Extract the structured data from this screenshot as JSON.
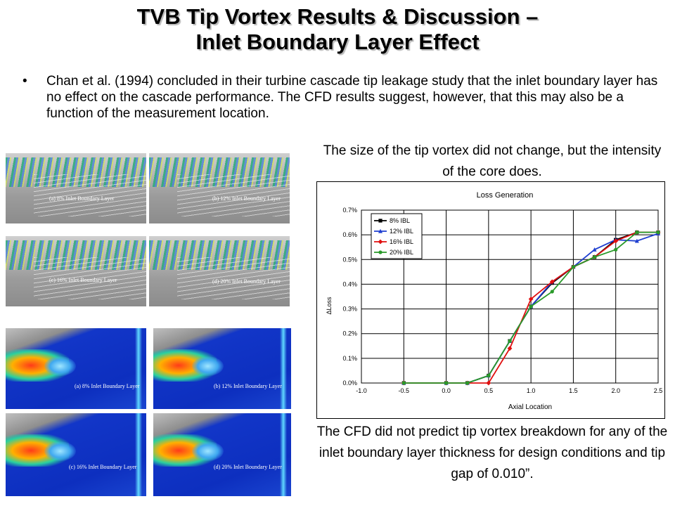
{
  "slide": {
    "title_line1": "TVB Tip Vortex Results & Discussion –",
    "title_line2": "Inlet Boundary Layer Effect",
    "bullet_symbol": "•",
    "bullet": "Chan et al. (1994) concluded in their turbine cascade tip leakage study that the inlet boundary layer has no effect on the cascade performance.  The CFD results suggest, however, that this may also be a function of the measurement location.",
    "caption_top": "The size of the tip vortex did not change, but the intensity of the core does.",
    "caption_bottom": "The CFD did not predict tip vortex breakdown for any of the inlet boundary layer thickness for design conditions and tip gap of 0.010”."
  },
  "figures": {
    "streamline_panels": [
      "(a) 8% Inlet Boundary Layer",
      "(b) 12% Inlet Boundary Layer",
      "(c) 16% Inlet Boundary Layer",
      "(d) 20% Inlet Boundary Layer"
    ],
    "contour_panels": [
      "(a) 8% Inlet Boundary Layer",
      "(b) 12% Inlet Boundary Layer",
      "(c) 16% Inlet Boundary Layer",
      "(d) 20% Inlet Boundary Layer"
    ]
  },
  "chart_data": {
    "type": "line",
    "title": "Loss Generation",
    "xlabel": "Axial Location",
    "ylabel": "ΔLoss",
    "xlim": [
      -1.0,
      2.5
    ],
    "ylim": [
      0.0,
      0.007
    ],
    "x_ticks": [
      "-1.0",
      "-0.5",
      "0.0",
      "0.5",
      "1.0",
      "1.5",
      "2.0",
      "2.5"
    ],
    "y_ticks": [
      "0.0%",
      "0.1%",
      "0.2%",
      "0.3%",
      "0.4%",
      "0.5%",
      "0.6%",
      "0.7%"
    ],
    "grid": true,
    "legend_position": "top-left",
    "series": [
      {
        "name": "8% IBL",
        "color": "#000000",
        "marker": "square",
        "points": [
          [
            -0.5,
            0.0
          ],
          [
            0.0,
            0.0
          ],
          [
            0.25,
            0.0
          ],
          [
            0.5,
            0.0003
          ],
          [
            0.75,
            0.0017
          ],
          [
            1.0,
            0.0031
          ],
          [
            1.25,
            0.00405
          ],
          [
            1.5,
            0.0047
          ],
          [
            1.75,
            0.0051
          ],
          [
            2.0,
            0.0058
          ],
          [
            2.25,
            0.0061
          ],
          [
            2.5,
            0.0061
          ]
        ]
      },
      {
        "name": "12% IBL",
        "color": "#1f3fd0",
        "marker": "triangle",
        "points": [
          [
            -0.5,
            0.0
          ],
          [
            0.0,
            0.0
          ],
          [
            0.25,
            0.0
          ],
          [
            0.5,
            0.0003
          ],
          [
            0.75,
            0.0017
          ],
          [
            1.0,
            0.0031
          ],
          [
            1.25,
            0.0041
          ],
          [
            1.5,
            0.0047
          ],
          [
            1.75,
            0.0054
          ],
          [
            2.0,
            0.0058
          ],
          [
            2.25,
            0.00575
          ],
          [
            2.5,
            0.00605
          ]
        ]
      },
      {
        "name": "16% IBL",
        "color": "#e01010",
        "marker": "diamond",
        "points": [
          [
            -0.5,
            0.0
          ],
          [
            0.0,
            0.0
          ],
          [
            0.25,
            0.0
          ],
          [
            0.5,
            0.0
          ],
          [
            0.75,
            0.0014
          ],
          [
            1.0,
            0.0034
          ],
          [
            1.25,
            0.0041
          ],
          [
            1.5,
            0.0047
          ],
          [
            1.75,
            0.0051
          ],
          [
            2.0,
            0.00575
          ],
          [
            2.25,
            0.0061
          ],
          [
            2.5,
            0.0061
          ]
        ]
      },
      {
        "name": "20% IBL",
        "color": "#2a9a2a",
        "marker": "circle",
        "points": [
          [
            -0.5,
            0.0
          ],
          [
            0.0,
            0.0
          ],
          [
            0.25,
            0.0
          ],
          [
            0.5,
            0.0003
          ],
          [
            0.75,
            0.0017
          ],
          [
            1.0,
            0.0031
          ],
          [
            1.25,
            0.0037
          ],
          [
            1.5,
            0.0047
          ],
          [
            1.75,
            0.0051
          ],
          [
            2.0,
            0.0054
          ],
          [
            2.25,
            0.0061
          ],
          [
            2.5,
            0.0061
          ]
        ]
      }
    ]
  }
}
